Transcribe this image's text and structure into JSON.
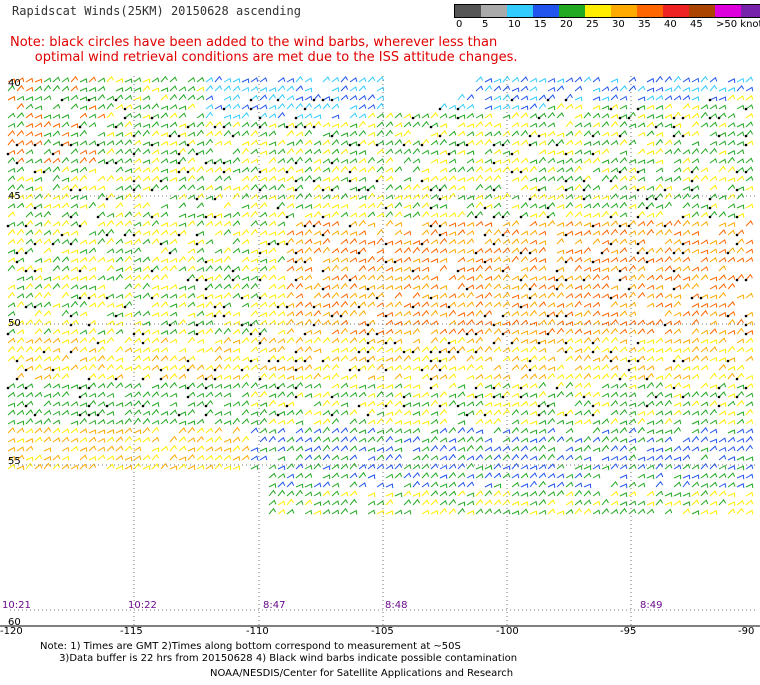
{
  "header": {
    "title": "Rapidscat Winds(25KM) 20150628 ascending",
    "note_line1": "Note: black circles have been added to the wind barbs, wherever less than",
    "note_line2": "      optimal wind retrieval conditions are met due to the ISS attitude changes."
  },
  "color_scale": {
    "labels": [
      "0",
      "5",
      "10",
      "15",
      "20",
      "25",
      "30",
      "35",
      "40",
      "45",
      ">50 knots"
    ],
    "colors": [
      "#555555",
      "#aaaaaa",
      "#33ccff",
      "#2255ee",
      "#22aa22",
      "#ffee00",
      "#ffaa00",
      "#ff6600",
      "#ee2222",
      "#aa4400",
      "#dd00dd",
      "#7722aa"
    ]
  },
  "map": {
    "lat_labels": [
      "40",
      "45",
      "50",
      "55",
      "60"
    ],
    "lon_labels": [
      "-120",
      "-115",
      "-110",
      "-105",
      "-100",
      "-95",
      "-90"
    ],
    "time_labels": [
      "10:21",
      "10:22",
      "8:47",
      "8:48",
      "8:49"
    ]
  },
  "footer": {
    "line1": "Note: 1) Times are GMT 2)Times along bottom correspond to measurement at ~50S",
    "line2": "      3)Data buffer is 22 hrs from 20150628 4) Black wind barbs indicate possible contamination",
    "credit": "NOAA/NESDIS/Center for Satellite Applications and Research"
  }
}
